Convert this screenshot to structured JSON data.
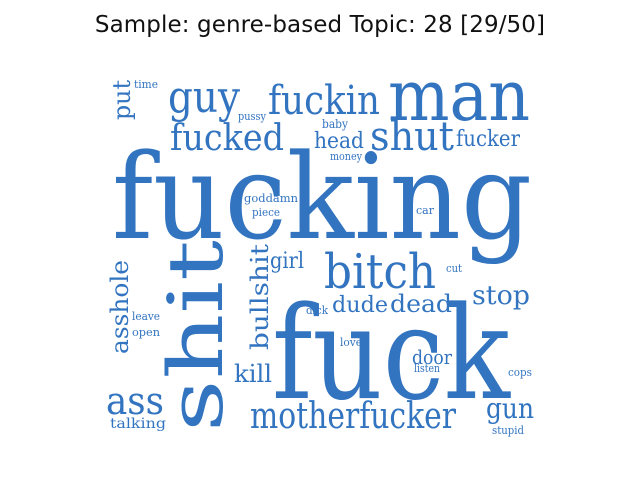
{
  "figure": {
    "title": "Sample: genre-based Topic: 28 [29/50]",
    "word_color": "#3274c0",
    "background_color": "#ffffff"
  },
  "wordcloud": {
    "words": [
      "fucking",
      "fuck",
      "shit",
      "man",
      "bitch",
      "guy",
      "fuckin",
      "fucked",
      "shut",
      "head",
      "fucker",
      "motherfucker",
      "bullshit",
      "asshole",
      "ass",
      "dude",
      "dead",
      "stop",
      "girl",
      "gun",
      "door",
      "kill",
      "put",
      "time",
      "pussy",
      "baby",
      "money",
      "goddamn",
      "piece",
      "car",
      "cut",
      "leave",
      "open",
      "dick",
      "love",
      "listen",
      "cops",
      "stupid",
      "talking"
    ]
  }
}
